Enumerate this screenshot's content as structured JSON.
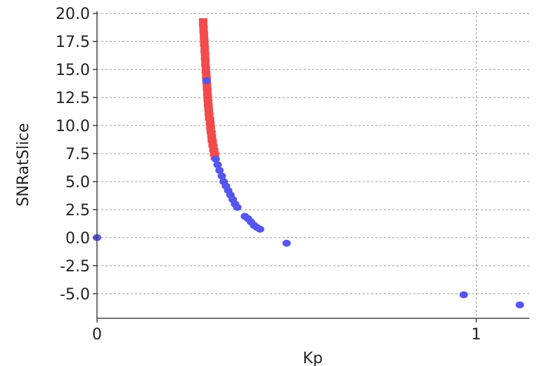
{
  "chart_data": {
    "type": "scatter",
    "title": "",
    "xlabel": "Kp",
    "ylabel": "SNRatSlice",
    "xlim": [
      0,
      1.14
    ],
    "ylim": [
      -7.2,
      20.2
    ],
    "x_ticks": [
      0,
      1
    ],
    "x_tick_labels": [
      "0",
      "1"
    ],
    "y_ticks": [
      20.0,
      17.5,
      15.0,
      12.5,
      10.0,
      7.5,
      5.0,
      2.5,
      0.0,
      -2.5,
      -5.0
    ],
    "y_tick_labels": [
      "20.0",
      "17.5",
      "15.0",
      "12.5",
      "10.0",
      "7.5",
      "5.0",
      "2.5",
      "0.0",
      "-2.5",
      "-5.0"
    ],
    "grid": true,
    "colors": {
      "red": "#f24b4b",
      "blue": "#5555f0",
      "grid": "#999999",
      "axis": "#444444"
    },
    "series": [
      {
        "color": "red",
        "points": [
          [
            0.28,
            19.2
          ],
          [
            0.281,
            18.6
          ],
          [
            0.282,
            18.0
          ],
          [
            0.283,
            17.4
          ],
          [
            0.284,
            16.8
          ],
          [
            0.285,
            16.2
          ],
          [
            0.286,
            15.6
          ],
          [
            0.287,
            15.0
          ],
          [
            0.288,
            14.5
          ],
          [
            0.289,
            14.0
          ],
          [
            0.29,
            13.5
          ],
          [
            0.291,
            13.0
          ],
          [
            0.292,
            12.5
          ],
          [
            0.293,
            12.0
          ],
          [
            0.294,
            11.6
          ],
          [
            0.295,
            11.2
          ],
          [
            0.296,
            10.8
          ],
          [
            0.298,
            10.4
          ],
          [
            0.299,
            10.0
          ],
          [
            0.3,
            9.6
          ],
          [
            0.302,
            9.2
          ],
          [
            0.303,
            8.8
          ],
          [
            0.305,
            8.4
          ],
          [
            0.307,
            8.0
          ],
          [
            0.309,
            7.6
          ],
          [
            0.311,
            7.3
          ]
        ]
      },
      {
        "color": "blue",
        "points": [
          [
            0.0,
            0.0
          ],
          [
            0.289,
            14.0
          ],
          [
            0.313,
            7.0
          ],
          [
            0.318,
            6.5
          ],
          [
            0.323,
            6.0
          ],
          [
            0.329,
            5.5
          ],
          [
            0.334,
            5.0
          ],
          [
            0.34,
            4.6
          ],
          [
            0.346,
            4.2
          ],
          [
            0.352,
            3.8
          ],
          [
            0.358,
            3.4
          ],
          [
            0.364,
            3.0
          ],
          [
            0.37,
            2.7
          ],
          [
            0.39,
            1.9
          ],
          [
            0.398,
            1.7
          ],
          [
            0.406,
            1.4
          ],
          [
            0.414,
            1.1
          ],
          [
            0.422,
            0.9
          ],
          [
            0.43,
            0.75
          ],
          [
            0.5,
            -0.5
          ],
          [
            0.967,
            -5.1
          ],
          [
            1.115,
            -6.0
          ]
        ]
      }
    ]
  }
}
